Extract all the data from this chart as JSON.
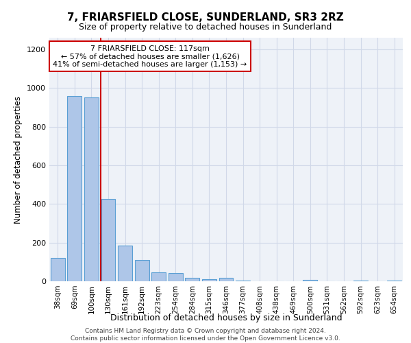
{
  "title": "7, FRIARSFIELD CLOSE, SUNDERLAND, SR3 2RZ",
  "subtitle": "Size of property relative to detached houses in Sunderland",
  "xlabel": "Distribution of detached houses by size in Sunderland",
  "ylabel": "Number of detached properties",
  "categories": [
    "38sqm",
    "69sqm",
    "100sqm",
    "130sqm",
    "161sqm",
    "192sqm",
    "223sqm",
    "254sqm",
    "284sqm",
    "315sqm",
    "346sqm",
    "377sqm",
    "408sqm",
    "438sqm",
    "469sqm",
    "500sqm",
    "531sqm",
    "562sqm",
    "592sqm",
    "623sqm",
    "654sqm"
  ],
  "values": [
    120,
    960,
    950,
    425,
    185,
    110,
    47,
    42,
    18,
    12,
    18,
    5,
    0,
    0,
    0,
    8,
    0,
    0,
    5,
    0,
    2
  ],
  "bar_color": "#aec6e8",
  "bar_edge_color": "#5a9fd4",
  "annotation_text_line1": "7 FRIARSFIELD CLOSE: 117sqm",
  "annotation_text_line2": "← 57% of detached houses are smaller (1,626)",
  "annotation_text_line3": "41% of semi-detached houses are larger (1,153) →",
  "annotation_box_color": "#ffffff",
  "annotation_box_edge_color": "#cc0000",
  "vline_color": "#cc0000",
  "ylim": [
    0,
    1260
  ],
  "yticks": [
    0,
    200,
    400,
    600,
    800,
    1000,
    1200
  ],
  "grid_color": "#d0d8e8",
  "bg_color": "#eef2f8",
  "footer_line1": "Contains HM Land Registry data © Crown copyright and database right 2024.",
  "footer_line2": "Contains public sector information licensed under the Open Government Licence v3.0."
}
